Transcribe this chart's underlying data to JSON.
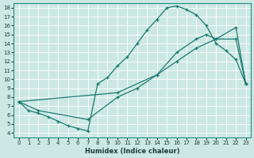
{
  "xlabel": "Humidex (Indice chaleur)",
  "bg_color": "#cce8e5",
  "line_color": "#1a7a6e",
  "grid_color": "#b0d8d4",
  "xlim": [
    -0.5,
    23.5
  ],
  "ylim": [
    3.5,
    18.5
  ],
  "yticks": [
    4,
    5,
    6,
    7,
    8,
    9,
    10,
    11,
    12,
    13,
    14,
    15,
    16,
    17,
    18
  ],
  "xticks": [
    0,
    1,
    2,
    3,
    4,
    5,
    6,
    7,
    8,
    9,
    10,
    11,
    12,
    13,
    14,
    15,
    16,
    17,
    18,
    19,
    20,
    21,
    22,
    23
  ],
  "line1_x": [
    0,
    1,
    2,
    3,
    4,
    5,
    6,
    7,
    8,
    9,
    10,
    11,
    12,
    13,
    14,
    15,
    16,
    17,
    18,
    19,
    20,
    21,
    22,
    23
  ],
  "line1_y": [
    7.5,
    6.5,
    6.2,
    5.8,
    5.3,
    4.8,
    4.5,
    4.2,
    9.5,
    10.2,
    11.5,
    12.5,
    14.0,
    15.5,
    16.7,
    18.0,
    18.2,
    17.8,
    17.2,
    16.0,
    14.0,
    13.2,
    12.2,
    9.5
  ],
  "line2_x": [
    0,
    2,
    7,
    10,
    12,
    14,
    16,
    18,
    20,
    22,
    23
  ],
  "line2_y": [
    7.5,
    6.5,
    5.5,
    8.0,
    9.0,
    10.5,
    12.0,
    13.5,
    14.5,
    15.8,
    9.5
  ],
  "line3_x": [
    0,
    10,
    14,
    16,
    18,
    19,
    20,
    22,
    23
  ],
  "line3_y": [
    7.5,
    8.5,
    10.5,
    13.0,
    14.5,
    15.0,
    14.5,
    14.5,
    9.5
  ]
}
